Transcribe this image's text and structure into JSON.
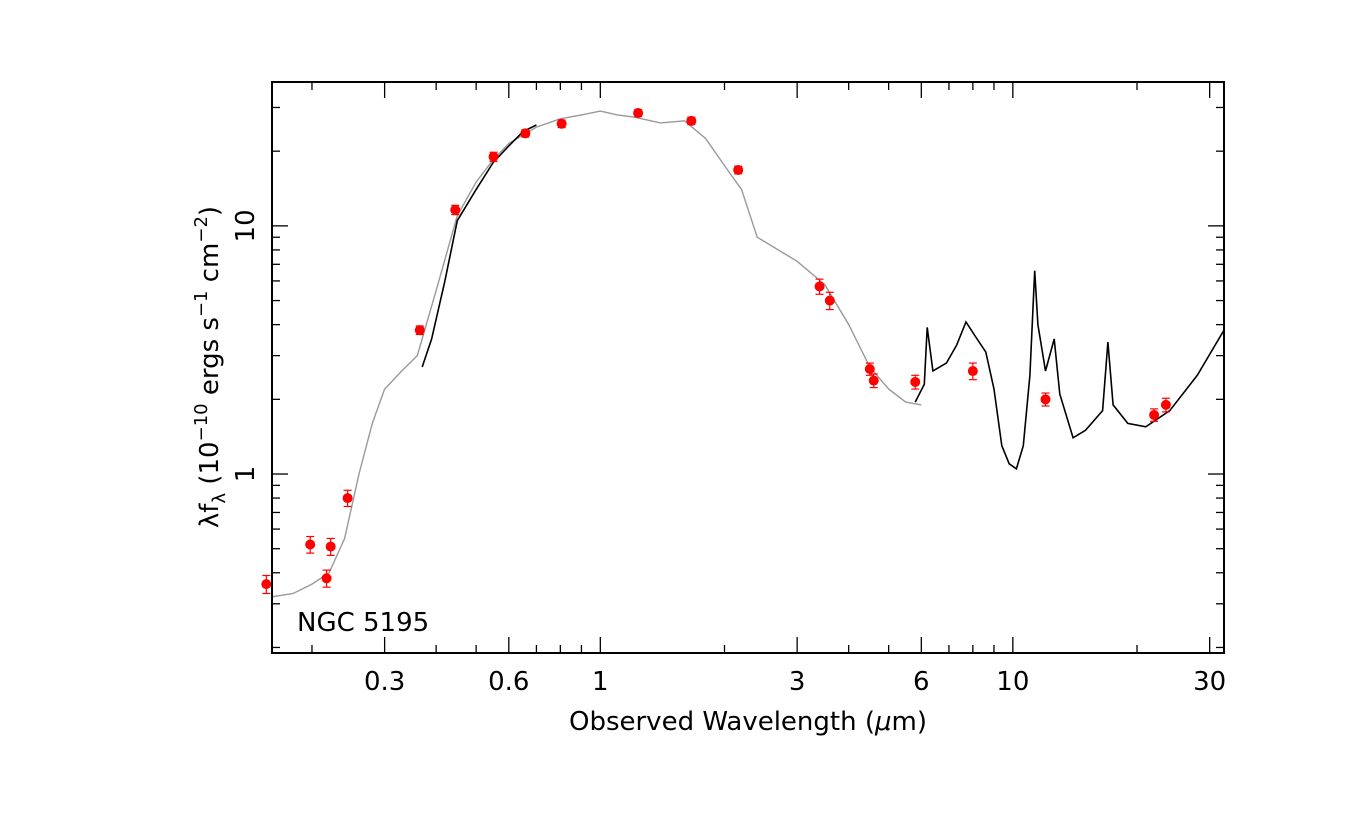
{
  "chart_data": {
    "type": "scatter",
    "title": "",
    "annotation": "NGC 5195",
    "xlabel": {
      "pre": "Observed Wavelength (",
      "mu": "μ",
      "post": "m)"
    },
    "ylabel": {
      "base": "λf",
      "sub": "λ",
      "t1": " (10",
      "exp1": "−10",
      "t2": " ergs s",
      "exp2": "−1",
      "t3": " cm",
      "exp3": "−2",
      "t4": ")"
    },
    "x_scale": "log",
    "y_scale": "log",
    "xlim": [
      0.16,
      32.5
    ],
    "ylim": [
      0.19,
      38
    ],
    "x_ticks": [
      {
        "value": 0.3,
        "label": "0.3"
      },
      {
        "value": 0.6,
        "label": "0.6"
      },
      {
        "value": 1,
        "label": "1"
      },
      {
        "value": 3,
        "label": "3"
      },
      {
        "value": 6,
        "label": "6"
      },
      {
        "value": 10,
        "label": "10"
      },
      {
        "value": 30,
        "label": "30"
      }
    ],
    "y_ticks": [
      {
        "value": 1,
        "label": "1"
      },
      {
        "value": 10,
        "label": "10"
      }
    ],
    "grid": false,
    "series": [
      {
        "role": "photometry",
        "color": "#ff0000",
        "points": [
          {
            "x": 0.155,
            "y": 0.36,
            "err": 0.03
          },
          {
            "x": 0.198,
            "y": 0.52,
            "err": 0.04
          },
          {
            "x": 0.217,
            "y": 0.38,
            "err": 0.03
          },
          {
            "x": 0.222,
            "y": 0.51,
            "err": 0.04
          },
          {
            "x": 0.244,
            "y": 0.8,
            "err": 0.06
          },
          {
            "x": 0.365,
            "y": 3.8,
            "err": 0.15
          },
          {
            "x": 0.445,
            "y": 11.6,
            "err": 0.5
          },
          {
            "x": 0.551,
            "y": 19.0,
            "err": 0.8
          },
          {
            "x": 0.658,
            "y": 23.6,
            "err": 0.8
          },
          {
            "x": 0.806,
            "y": 25.8,
            "err": 0.9
          },
          {
            "x": 1.235,
            "y": 28.5,
            "err": 0.9
          },
          {
            "x": 1.662,
            "y": 26.5,
            "err": 0.9
          },
          {
            "x": 2.159,
            "y": 16.8,
            "err": 0.6
          },
          {
            "x": 3.4,
            "y": 5.7,
            "err": 0.4
          },
          {
            "x": 3.6,
            "y": 5.0,
            "err": 0.4
          },
          {
            "x": 4.5,
            "y": 2.65,
            "err": 0.15
          },
          {
            "x": 4.6,
            "y": 2.38,
            "err": 0.15
          },
          {
            "x": 5.8,
            "y": 2.35,
            "err": 0.15
          },
          {
            "x": 8.0,
            "y": 2.6,
            "err": 0.2
          },
          {
            "x": 12.0,
            "y": 2.0,
            "err": 0.12
          },
          {
            "x": 22.0,
            "y": 1.73,
            "err": 0.1
          },
          {
            "x": 23.5,
            "y": 1.9,
            "err": 0.12
          }
        ]
      },
      {
        "role": "template",
        "color": "#999999",
        "points": [
          {
            "x": 0.16,
            "y": 0.32
          },
          {
            "x": 0.18,
            "y": 0.33
          },
          {
            "x": 0.2,
            "y": 0.36
          },
          {
            "x": 0.22,
            "y": 0.4
          },
          {
            "x": 0.24,
            "y": 0.55
          },
          {
            "x": 0.26,
            "y": 1.0
          },
          {
            "x": 0.28,
            "y": 1.6
          },
          {
            "x": 0.3,
            "y": 2.2
          },
          {
            "x": 0.33,
            "y": 2.6
          },
          {
            "x": 0.36,
            "y": 3.0
          },
          {
            "x": 0.4,
            "y": 5.5
          },
          {
            "x": 0.45,
            "y": 11.0
          },
          {
            "x": 0.5,
            "y": 15.0
          },
          {
            "x": 0.55,
            "y": 18.5
          },
          {
            "x": 0.6,
            "y": 21.5
          },
          {
            "x": 0.7,
            "y": 25.0
          },
          {
            "x": 0.8,
            "y": 27.0
          },
          {
            "x": 0.9,
            "y": 28.0
          },
          {
            "x": 1.0,
            "y": 29.0
          },
          {
            "x": 1.1,
            "y": 28.0
          },
          {
            "x": 1.2,
            "y": 27.5
          },
          {
            "x": 1.4,
            "y": 26.0
          },
          {
            "x": 1.6,
            "y": 26.5
          },
          {
            "x": 1.8,
            "y": 22.5
          },
          {
            "x": 2.0,
            "y": 17.5
          },
          {
            "x": 2.2,
            "y": 14.0
          },
          {
            "x": 2.4,
            "y": 9.0
          },
          {
            "x": 3.0,
            "y": 7.2
          },
          {
            "x": 3.5,
            "y": 5.8
          },
          {
            "x": 4.0,
            "y": 4.0
          },
          {
            "x": 4.5,
            "y": 2.7
          },
          {
            "x": 5.0,
            "y": 2.2
          },
          {
            "x": 5.5,
            "y": 1.95
          },
          {
            "x": 6.0,
            "y": 1.9
          }
        ]
      },
      {
        "role": "optical-spectrum",
        "color": "#000000",
        "points": [
          {
            "x": 0.37,
            "y": 2.7
          },
          {
            "x": 0.39,
            "y": 3.5
          },
          {
            "x": 0.42,
            "y": 6.0
          },
          {
            "x": 0.45,
            "y": 10.5
          },
          {
            "x": 0.5,
            "y": 14.0
          },
          {
            "x": 0.55,
            "y": 18.0
          },
          {
            "x": 0.6,
            "y": 21.0
          },
          {
            "x": 0.65,
            "y": 24.0
          },
          {
            "x": 0.7,
            "y": 25.5
          }
        ]
      },
      {
        "role": "ir-spectrum",
        "color": "#000000",
        "points": [
          {
            "x": 5.8,
            "y": 1.95
          },
          {
            "x": 6.1,
            "y": 2.3
          },
          {
            "x": 6.2,
            "y": 3.9
          },
          {
            "x": 6.4,
            "y": 2.6
          },
          {
            "x": 6.9,
            "y": 2.8
          },
          {
            "x": 7.3,
            "y": 3.3
          },
          {
            "x": 7.7,
            "y": 4.1
          },
          {
            "x": 8.1,
            "y": 3.6
          },
          {
            "x": 8.6,
            "y": 3.1
          },
          {
            "x": 9.0,
            "y": 2.2
          },
          {
            "x": 9.4,
            "y": 1.3
          },
          {
            "x": 9.8,
            "y": 1.1
          },
          {
            "x": 10.2,
            "y": 1.05
          },
          {
            "x": 10.6,
            "y": 1.3
          },
          {
            "x": 11.0,
            "y": 2.5
          },
          {
            "x": 11.3,
            "y": 6.6
          },
          {
            "x": 11.5,
            "y": 4.0
          },
          {
            "x": 12.0,
            "y": 2.6
          },
          {
            "x": 12.6,
            "y": 3.5
          },
          {
            "x": 13.0,
            "y": 2.1
          },
          {
            "x": 14.0,
            "y": 1.4
          },
          {
            "x": 15.0,
            "y": 1.5
          },
          {
            "x": 16.5,
            "y": 1.8
          },
          {
            "x": 17.0,
            "y": 3.4
          },
          {
            "x": 17.5,
            "y": 1.9
          },
          {
            "x": 19.0,
            "y": 1.6
          },
          {
            "x": 21.0,
            "y": 1.55
          },
          {
            "x": 24.0,
            "y": 1.8
          },
          {
            "x": 28.0,
            "y": 2.5
          },
          {
            "x": 32.5,
            "y": 3.8
          }
        ]
      }
    ]
  }
}
